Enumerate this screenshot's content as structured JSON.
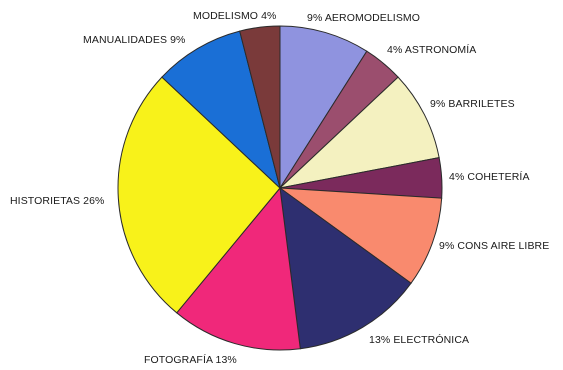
{
  "chart_data": {
    "type": "pie",
    "title": "",
    "slices": [
      {
        "label": "9% AEROMODELISMO",
        "value": 9,
        "color": "#8f93df"
      },
      {
        "label": "4% ASTRONOMÍA",
        "value": 4,
        "color": "#9b4e6e"
      },
      {
        "label": "9% BARRILETES",
        "value": 9,
        "color": "#f4f1c0"
      },
      {
        "label": "4% COHETERÍA",
        "value": 4,
        "color": "#7b2a5c"
      },
      {
        "label": "9% CONS AIRE LIBRE",
        "value": 9,
        "color": "#f98a6e"
      },
      {
        "label": "13% ELECTRÓNICA",
        "value": 13,
        "color": "#2e2f70"
      },
      {
        "label": "FOTOGRAFÍA 13%",
        "value": 13,
        "color": "#f0287a"
      },
      {
        "label": "HISTORIETAS 26%",
        "value": 26,
        "color": "#f8f21a"
      },
      {
        "label": "MANUALIDADES 9%",
        "value": 9,
        "color": "#1a6fd6"
      },
      {
        "label": "MODELISMO 4%",
        "value": 4,
        "color": "#7a3a3a"
      }
    ]
  }
}
